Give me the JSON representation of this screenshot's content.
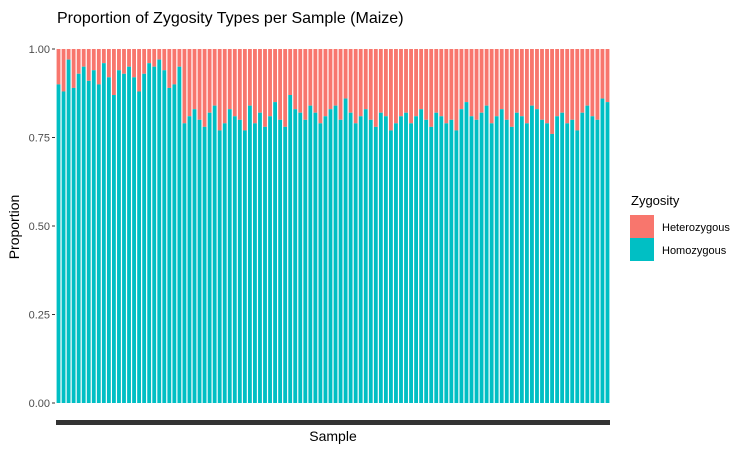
{
  "chart_data": {
    "type": "bar",
    "stacked": true,
    "title": "Proportion of Zygosity Types per Sample (Maize)",
    "xlabel": "Sample",
    "ylabel": "Proportion",
    "ylim": [
      0,
      1
    ],
    "y_ticks": [
      "0.00",
      "0.25",
      "0.50",
      "0.75",
      "1.00"
    ],
    "y_tick_values": [
      0,
      0.25,
      0.5,
      0.75,
      1.0
    ],
    "legend": {
      "title": "Zygosity",
      "placement": "right",
      "entries": [
        "Heterozygous",
        "Homozygous"
      ]
    },
    "colors": {
      "Heterozygous": "#F8766D",
      "Homozygous": "#00BFC4"
    },
    "grid": false,
    "sample_count": 110,
    "homozygous_values": [
      0.9,
      0.88,
      0.97,
      0.89,
      0.93,
      0.95,
      0.91,
      0.94,
      0.9,
      0.96,
      0.92,
      0.87,
      0.94,
      0.93,
      0.95,
      0.92,
      0.88,
      0.93,
      0.96,
      0.95,
      0.97,
      0.94,
      0.89,
      0.9,
      0.95,
      0.79,
      0.81,
      0.83,
      0.8,
      0.78,
      0.82,
      0.84,
      0.77,
      0.79,
      0.83,
      0.81,
      0.8,
      0.77,
      0.84,
      0.79,
      0.82,
      0.78,
      0.81,
      0.85,
      0.8,
      0.78,
      0.87,
      0.83,
      0.82,
      0.8,
      0.84,
      0.82,
      0.79,
      0.81,
      0.83,
      0.84,
      0.8,
      0.86,
      0.82,
      0.79,
      0.81,
      0.83,
      0.8,
      0.78,
      0.82,
      0.81,
      0.77,
      0.79,
      0.81,
      0.82,
      0.79,
      0.81,
      0.83,
      0.8,
      0.78,
      0.82,
      0.81,
      0.79,
      0.8,
      0.77,
      0.83,
      0.85,
      0.81,
      0.8,
      0.82,
      0.84,
      0.79,
      0.81,
      0.83,
      0.8,
      0.78,
      0.82,
      0.81,
      0.79,
      0.84,
      0.83,
      0.8,
      0.79,
      0.76,
      0.81,
      0.82,
      0.79,
      0.8,
      0.77,
      0.82,
      0.84,
      0.81,
      0.8,
      0.86,
      0.85
    ]
  }
}
